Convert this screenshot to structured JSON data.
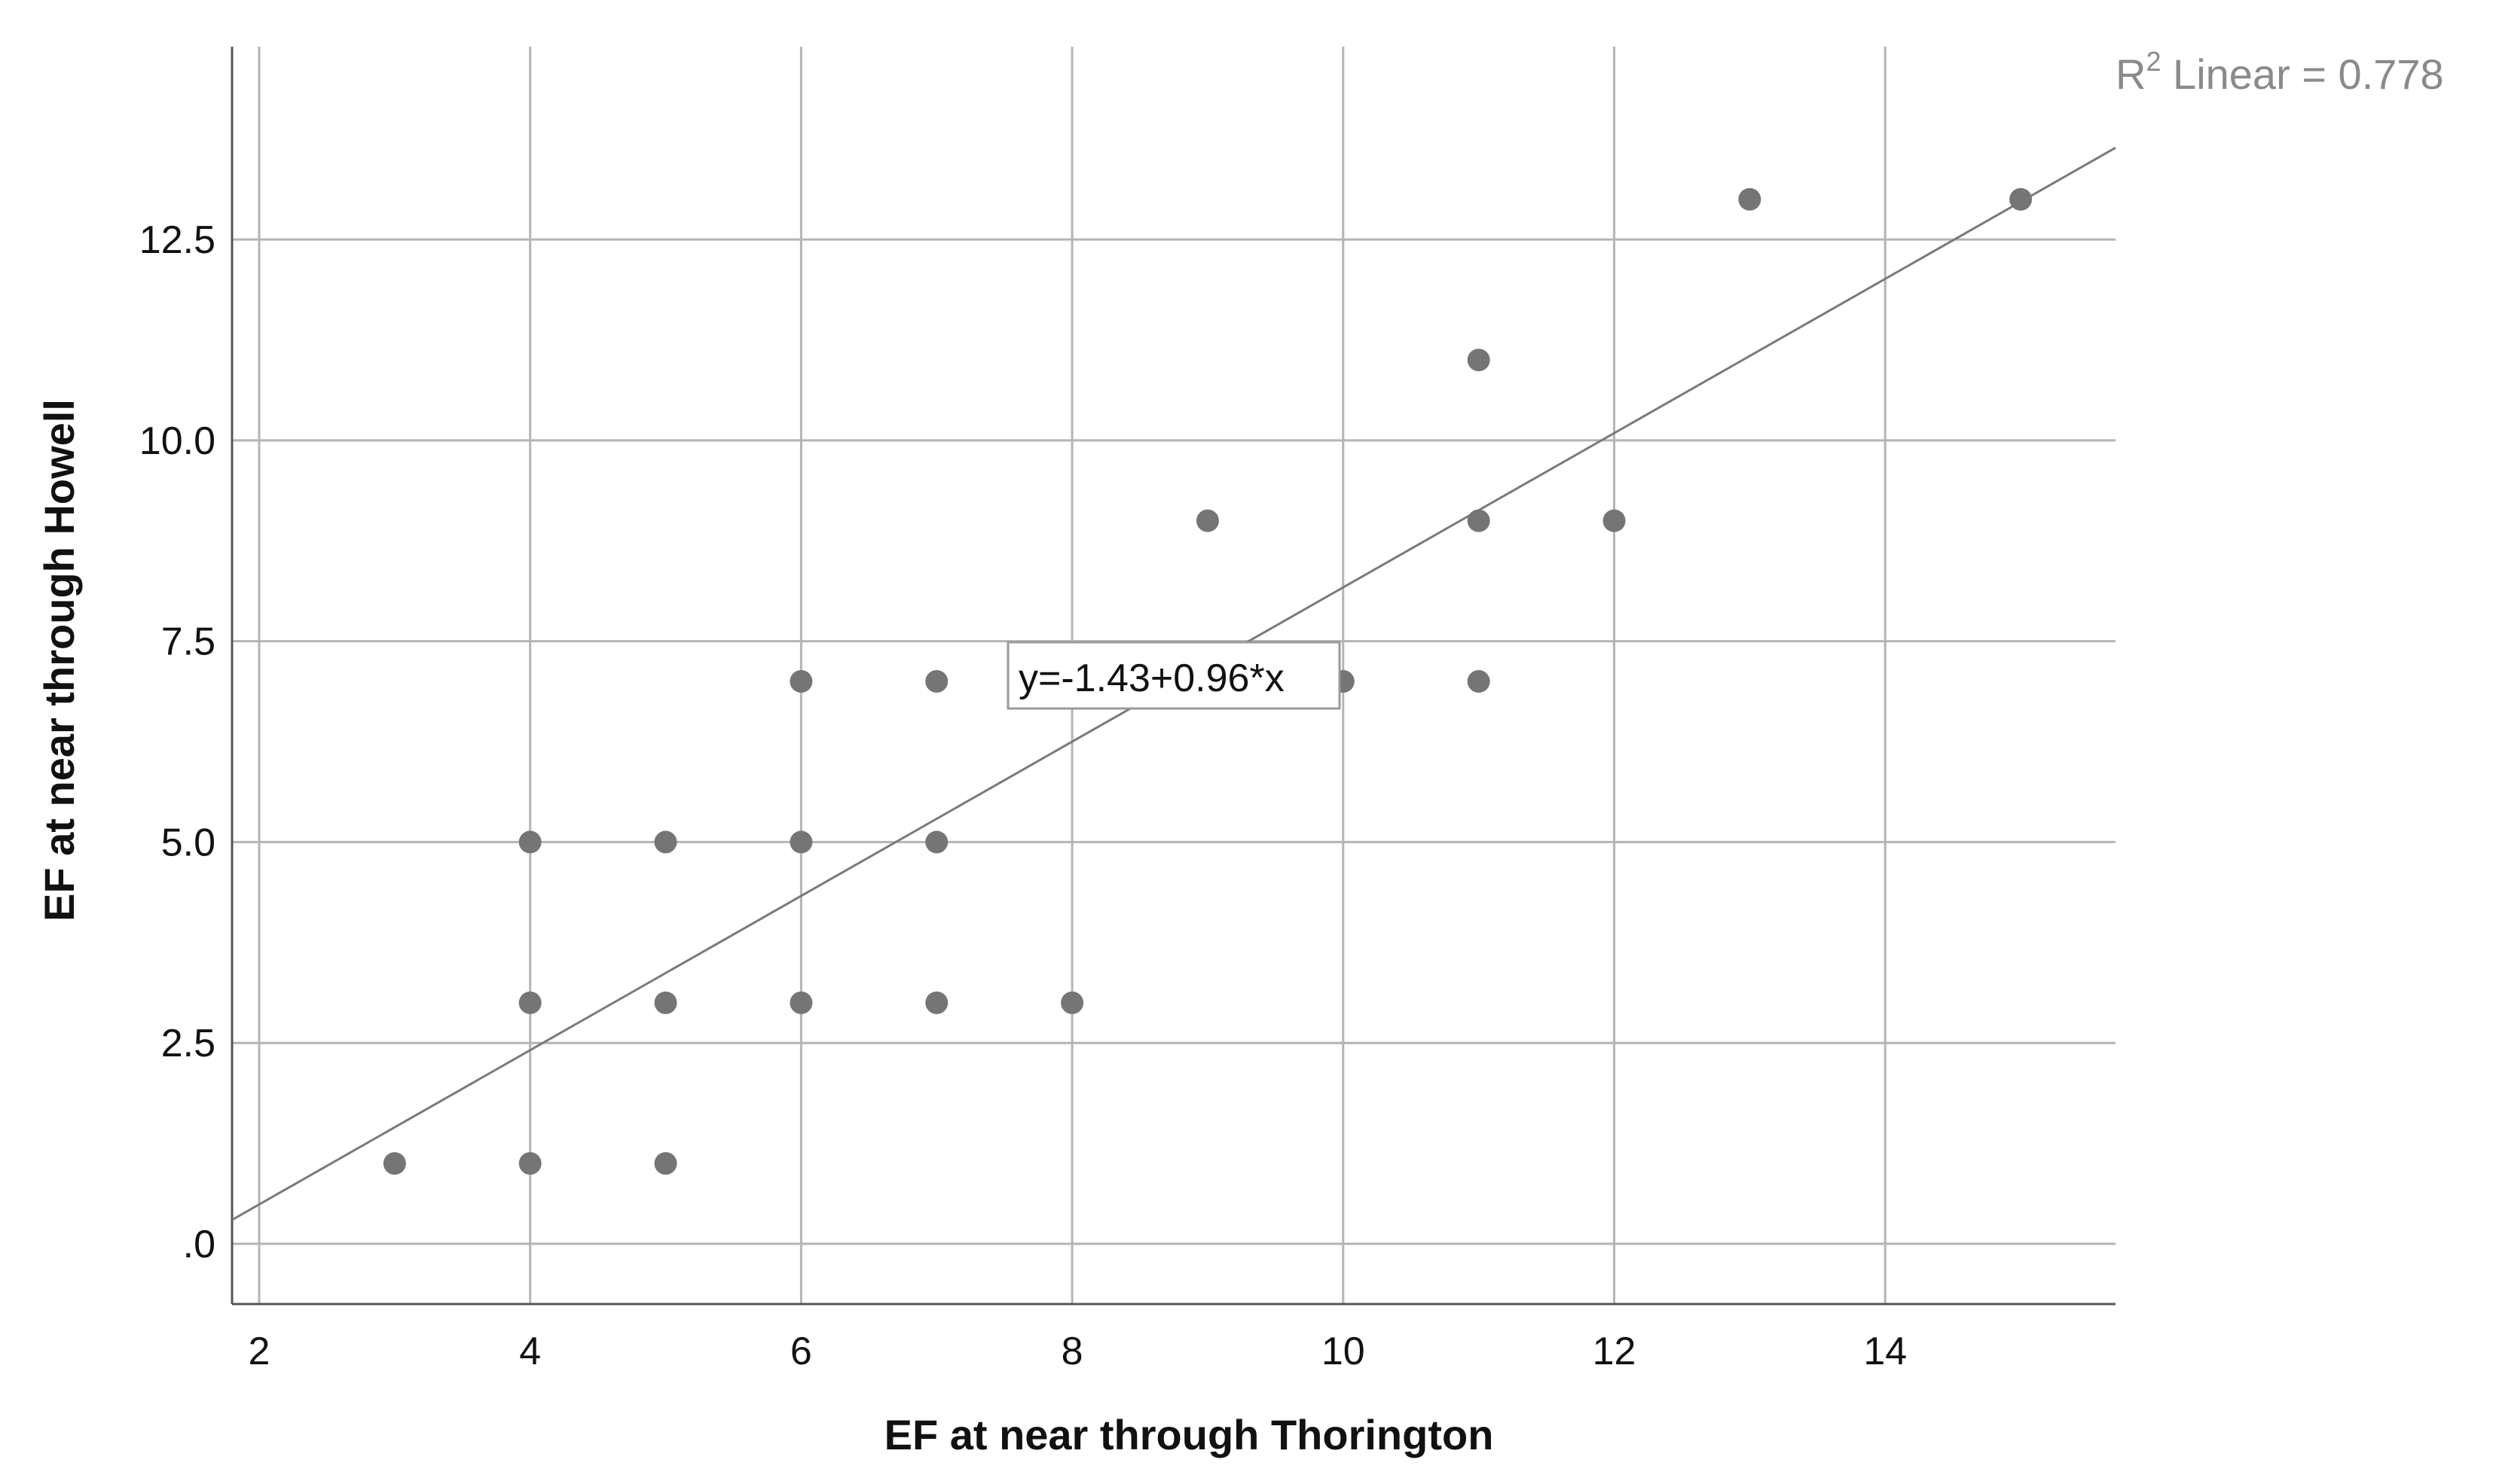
{
  "chart_data": {
    "type": "scatter",
    "xlabel": "EF at near through Thorington",
    "ylabel": "EF at near through Howell",
    "xlim": [
      1.8,
      15.7
    ],
    "ylim": [
      -0.75,
      14.9
    ],
    "xticks": [
      2,
      4,
      6,
      8,
      10,
      12,
      14
    ],
    "xtick_labels": [
      "2",
      "4",
      "6",
      "8",
      "10",
      "12",
      "14"
    ],
    "yticks": [
      0,
      2.5,
      5.0,
      7.5,
      10.0,
      12.5
    ],
    "ytick_labels": [
      ".0",
      "2.5",
      "5.0",
      "7.5",
      "10.0",
      "12.5"
    ],
    "grid": true,
    "points": [
      {
        "x": 3,
        "y": 1
      },
      {
        "x": 4,
        "y": 1
      },
      {
        "x": 4,
        "y": 3
      },
      {
        "x": 4,
        "y": 5
      },
      {
        "x": 5,
        "y": 1
      },
      {
        "x": 5,
        "y": 3
      },
      {
        "x": 5,
        "y": 5
      },
      {
        "x": 6,
        "y": 3
      },
      {
        "x": 6,
        "y": 5
      },
      {
        "x": 6,
        "y": 7
      },
      {
        "x": 7,
        "y": 3
      },
      {
        "x": 7,
        "y": 5
      },
      {
        "x": 7,
        "y": 7
      },
      {
        "x": 8,
        "y": 3
      },
      {
        "x": 9,
        "y": 9
      },
      {
        "x": 10,
        "y": 7
      },
      {
        "x": 11,
        "y": 7
      },
      {
        "x": 11,
        "y": 9
      },
      {
        "x": 11,
        "y": 11
      },
      {
        "x": 12,
        "y": 9
      },
      {
        "x": 13,
        "y": 13
      },
      {
        "x": 15,
        "y": 13
      }
    ],
    "fit_line": {
      "intercept": -1.43,
      "slope": 0.96
    },
    "fit_equation_label": "y=-1.43+0.96*x",
    "r2_label": {
      "prefix": "R",
      "sup": "2",
      "text": " Linear = 0.778"
    },
    "point_color": "#757575",
    "line_color": "#7a7a7a"
  }
}
